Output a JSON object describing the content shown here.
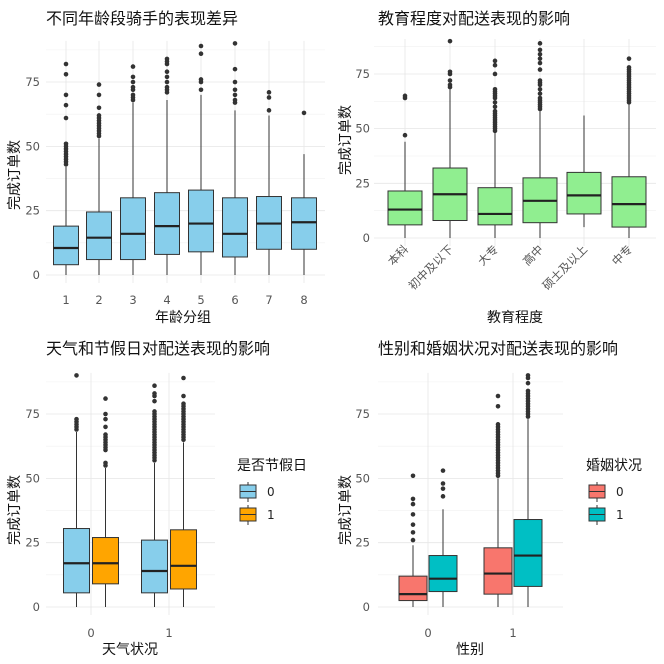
{
  "chart_data": [
    {
      "type": "box",
      "title": "不同年龄段骑手的表现差异",
      "xlabel": "年龄分组",
      "ylabel": "完成订单数",
      "ylim": [
        0,
        90
      ],
      "yticks": [
        "0",
        "25",
        "50",
        "75"
      ],
      "fill": "#87CEEB",
      "categories": [
        "1",
        "2",
        "3",
        "4",
        "5",
        "6",
        "7",
        "8"
      ],
      "boxes": [
        {
          "cat": 0,
          "lo": 0,
          "q1": 4,
          "med": 10.5,
          "q3": 19,
          "hi": 42,
          "out": [
            43,
            44,
            45,
            46,
            47,
            48,
            49,
            50,
            51,
            61,
            66,
            70,
            78,
            82
          ]
        },
        {
          "cat": 1,
          "lo": 0,
          "q1": 6,
          "med": 14.5,
          "q3": 24.5,
          "hi": 53,
          "out": [
            54,
            55,
            56,
            57,
            58,
            59,
            60,
            61,
            62,
            65,
            70,
            74
          ]
        },
        {
          "cat": 2,
          "lo": 0,
          "q1": 6,
          "med": 16,
          "q3": 30,
          "hi": 67,
          "out": [
            68,
            69,
            70,
            72,
            73,
            75,
            77,
            81
          ]
        },
        {
          "cat": 3,
          "lo": 0,
          "q1": 8,
          "med": 19,
          "q3": 32,
          "hi": 68,
          "out": [
            71,
            72,
            73,
            75,
            77,
            79,
            82,
            83,
            84
          ]
        },
        {
          "cat": 4,
          "lo": 0,
          "q1": 9,
          "med": 20,
          "q3": 33,
          "hi": 70,
          "out": [
            72,
            75,
            76,
            86,
            89
          ]
        },
        {
          "cat": 5,
          "lo": 0,
          "q1": 7,
          "med": 16,
          "q3": 30,
          "hi": 64,
          "out": [
            67,
            68,
            70,
            72,
            75,
            80,
            90
          ]
        },
        {
          "cat": 6,
          "lo": 0,
          "q1": 10,
          "med": 20,
          "q3": 30.5,
          "hi": 62,
          "out": [
            64,
            69,
            71
          ]
        },
        {
          "cat": 7,
          "lo": 0,
          "q1": 10,
          "med": 20.5,
          "q3": 30,
          "hi": 47,
          "out": [
            63
          ]
        }
      ]
    },
    {
      "type": "box",
      "title": "教育程度对配送表现的影响",
      "xlabel": "教育程度",
      "ylabel": "完成订单数",
      "ylim": [
        0,
        90
      ],
      "yticks": [
        "0",
        "25",
        "50",
        "75"
      ],
      "fill": "#90EE90",
      "categories": [
        "本科",
        "初中及以下",
        "大专",
        "高中",
        "硕士及以上",
        "中专"
      ],
      "boxes": [
        {
          "cat": 0,
          "lo": 0,
          "q1": 6,
          "med": 13,
          "q3": 21.5,
          "hi": 44,
          "out": [
            47,
            64,
            65
          ]
        },
        {
          "cat": 1,
          "lo": 0,
          "q1": 8,
          "med": 20,
          "q3": 32,
          "hi": 68,
          "out": [
            69,
            70,
            72,
            75,
            76,
            90
          ]
        },
        {
          "cat": 2,
          "lo": 0,
          "q1": 6,
          "med": 11,
          "q3": 23,
          "hi": 48,
          "out": [
            49,
            50,
            51,
            52,
            53,
            54,
            55,
            56,
            57,
            58,
            60,
            62,
            64,
            65,
            66,
            67,
            68,
            75,
            79,
            81
          ]
        },
        {
          "cat": 3,
          "lo": 0,
          "q1": 7,
          "med": 17,
          "q3": 27.5,
          "hi": 58,
          "out": [
            59,
            60,
            61,
            62,
            63,
            64,
            66,
            68,
            70,
            71,
            72,
            77,
            80,
            82,
            84,
            86,
            89
          ]
        },
        {
          "cat": 4,
          "lo": 5,
          "q1": 11,
          "med": 19.5,
          "q3": 30,
          "hi": 56,
          "out": []
        },
        {
          "cat": 5,
          "lo": 0,
          "q1": 5,
          "med": 15.5,
          "q3": 28,
          "hi": 61,
          "out": [
            62,
            63,
            64,
            65,
            66,
            67,
            68,
            69,
            70,
            71,
            72,
            73,
            74,
            75,
            76,
            77,
            78,
            82
          ]
        }
      ]
    },
    {
      "type": "box",
      "title": "天气和节假日对配送表现的影响",
      "xlabel": "天气状况",
      "ylabel": "完成订单数",
      "ylim": [
        0,
        90
      ],
      "yticks": [
        "0",
        "25",
        "50",
        "75"
      ],
      "categories": [
        "0",
        "1"
      ],
      "legend": {
        "title": "是否节假日",
        "position": "right",
        "entries": [
          {
            "label": "0",
            "color": "#87CEEB"
          },
          {
            "label": "1",
            "color": "#FFA500"
          }
        ]
      },
      "boxes": [
        {
          "cat": 0,
          "group": 0,
          "lo": 0,
          "q1": 5.5,
          "med": 17,
          "q3": 30.5,
          "hi": 68,
          "out": [
            69,
            70,
            71,
            72,
            73,
            90
          ]
        },
        {
          "cat": 0,
          "group": 1,
          "lo": 0,
          "q1": 9,
          "med": 17,
          "q3": 27,
          "hi": 54,
          "out": [
            55,
            56,
            61,
            62,
            63,
            64,
            65,
            66,
            67,
            70,
            73,
            75,
            81
          ]
        },
        {
          "cat": 1,
          "group": 0,
          "lo": 0,
          "q1": 5.5,
          "med": 14,
          "q3": 26,
          "hi": 56,
          "out": [
            57,
            58,
            59,
            60,
            61,
            62,
            63,
            64,
            65,
            66,
            67,
            68,
            69,
            70,
            71,
            72,
            73,
            74,
            75,
            76,
            80,
            82,
            83,
            86
          ]
        },
        {
          "cat": 1,
          "group": 1,
          "lo": 0,
          "q1": 7,
          "med": 16,
          "q3": 30,
          "hi": 64,
          "out": [
            65,
            66,
            67,
            68,
            69,
            70,
            71,
            72,
            73,
            74,
            75,
            76,
            77,
            78,
            79,
            82,
            89
          ]
        }
      ]
    },
    {
      "type": "box",
      "title": "性别和婚姻状况对配送表现的影响",
      "xlabel": "性别",
      "ylabel": "完成订单数",
      "ylim": [
        0,
        90
      ],
      "yticks": [
        "0",
        "25",
        "50",
        "75"
      ],
      "categories": [
        "0",
        "1"
      ],
      "legend": {
        "title": "婚姻状况",
        "position": "right",
        "entries": [
          {
            "label": "0",
            "color": "#F8766D"
          },
          {
            "label": "1",
            "color": "#00BFC4"
          }
        ]
      },
      "boxes": [
        {
          "cat": 0,
          "group": 0,
          "lo": 0,
          "q1": 2.5,
          "med": 5,
          "q3": 12,
          "hi": 24,
          "out": [
            26,
            29,
            32,
            36,
            40,
            42,
            51
          ]
        },
        {
          "cat": 0,
          "group": 1,
          "lo": 0,
          "q1": 6,
          "med": 11,
          "q3": 20,
          "hi": 38,
          "out": [
            43,
            46,
            48,
            53
          ]
        },
        {
          "cat": 1,
          "group": 0,
          "lo": 0,
          "q1": 5,
          "med": 13,
          "q3": 23,
          "hi": 50,
          "out": [
            51,
            52,
            53,
            54,
            55,
            56,
            57,
            58,
            59,
            60,
            61,
            62,
            63,
            64,
            65,
            66,
            67,
            68,
            69,
            70,
            71,
            78,
            82
          ]
        },
        {
          "cat": 1,
          "group": 1,
          "lo": 0,
          "q1": 8,
          "med": 20,
          "q3": 34,
          "hi": 73,
          "out": [
            74,
            75,
            76,
            77,
            78,
            79,
            80,
            81,
            82,
            83,
            84,
            87,
            89,
            90
          ]
        }
      ]
    }
  ]
}
